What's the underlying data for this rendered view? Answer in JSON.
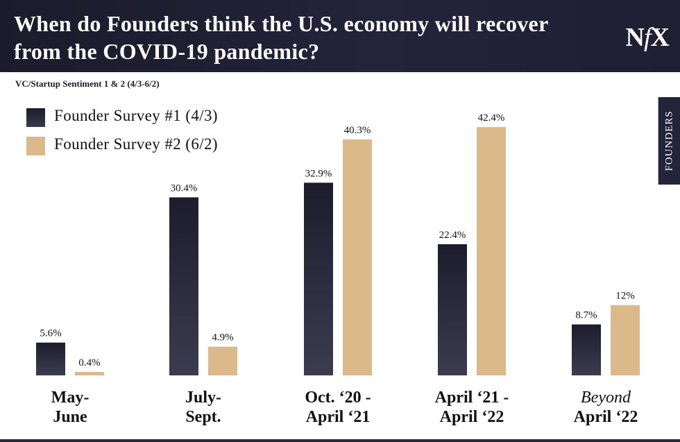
{
  "header": {
    "title_line1": "When do Founders think the U.S. economy will recover",
    "title_line2": "from the COVID-19 pandemic?",
    "logo_n": "N",
    "logo_f": "f",
    "logo_x": "X"
  },
  "subtitle": "VC/Startup Sentiment 1 & 2 (4/3-6/2)",
  "side_tab": "FOUNDERS",
  "colors": {
    "dark": "#23233a",
    "tan": "#dcb98a",
    "header_bg": "#1e1e30"
  },
  "chart_data": {
    "type": "bar",
    "title": "When do Founders think the U.S. economy will recover from the COVID-19 pandemic?",
    "subtitle": "VC/Startup Sentiment 1 & 2 (4/3-6/2)",
    "categories": [
      {
        "line1": "May-",
        "line2": "June",
        "italic": false
      },
      {
        "line1": "July-",
        "line2": "Sept.",
        "italic": false
      },
      {
        "line1": "Oct. ‘20 -",
        "line2": "April ‘21",
        "italic": false
      },
      {
        "line1": "April ‘21 -",
        "line2": "April ‘22",
        "italic": false
      },
      {
        "line1": "Beyond",
        "line2": "April ‘22",
        "italic": true
      }
    ],
    "series": [
      {
        "name": "Founder Survey #1 (4/3)",
        "values": [
          5.6,
          30.4,
          32.9,
          22.4,
          8.7
        ],
        "labels": [
          "5.6%",
          "30.4%",
          "32.9%",
          "22.4%",
          "8.7%"
        ],
        "color": "#23233a"
      },
      {
        "name": "Founder Survey #2 (6/2)",
        "values": [
          0.4,
          4.9,
          40.3,
          42.4,
          12
        ],
        "labels": [
          "0.4%",
          "4.9%",
          "40.3%",
          "42.4%",
          "12%"
        ],
        "color": "#dcb98a"
      }
    ],
    "ylim": [
      0,
      50
    ],
    "grid": false,
    "legend_position": "top-left"
  }
}
